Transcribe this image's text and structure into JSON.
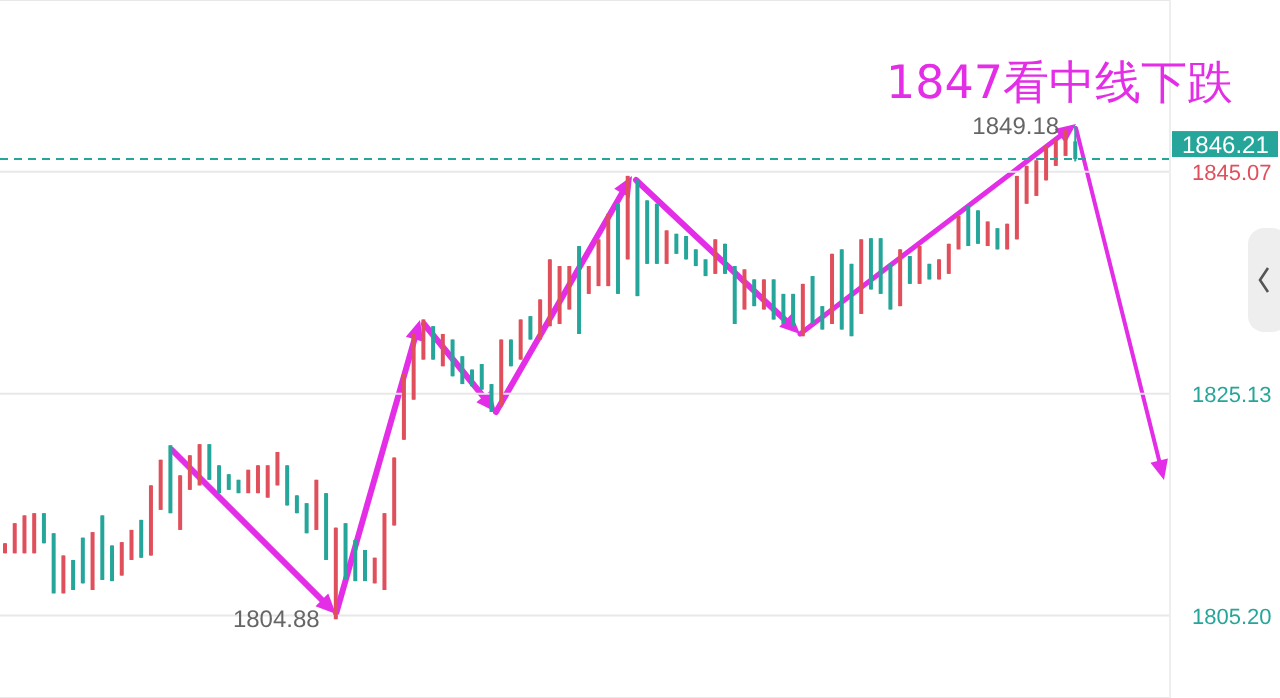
{
  "chart_data": {
    "type": "candlestick",
    "title": "1847看中线下跌",
    "categories": [
      null,
      null,
      null,
      null,
      null,
      null,
      null,
      null,
      null,
      null,
      null,
      null,
      null,
      null,
      null,
      null,
      null,
      null,
      null,
      null,
      null,
      null,
      null,
      null,
      null,
      null,
      null,
      null,
      null,
      null,
      null,
      null,
      null,
      null,
      null,
      null,
      null,
      null,
      null,
      null,
      null,
      null,
      null,
      null,
      null,
      null,
      null,
      null,
      null,
      null,
      null,
      null,
      null,
      null,
      null,
      null,
      null,
      null,
      null,
      null,
      null,
      null,
      null,
      null,
      null,
      null,
      null,
      null,
      null,
      null,
      null,
      null,
      null,
      null,
      null,
      null,
      null,
      null,
      null,
      null,
      null,
      null,
      null,
      null,
      null,
      null,
      null,
      null,
      null,
      null,
      null,
      null,
      null,
      null,
      null,
      null,
      null,
      null,
      null,
      null,
      null,
      null,
      null,
      null,
      null,
      null,
      null,
      null,
      null,
      null,
      null
    ],
    "ohlc": [
      [
        1810.8,
        1811.7,
        1810.8,
        1811.7
      ],
      [
        1810.8,
        1813.5,
        1810.8,
        1813.5
      ],
      [
        1810.8,
        1814.2,
        1810.8,
        1814.2
      ],
      [
        1810.8,
        1814.4,
        1810.8,
        1814.4
      ],
      [
        1814.4,
        1814.4,
        1811.7,
        1811.7
      ],
      [
        1812.6,
        1812.6,
        1807.2,
        1807.2
      ],
      [
        1807.2,
        1810.6,
        1807.2,
        1810.6
      ],
      [
        1810.2,
        1810.2,
        1807.5,
        1807.5
      ],
      [
        1812.2,
        1812.2,
        1808.1,
        1808.1
      ],
      [
        1807.5,
        1812.7,
        1807.5,
        1812.7
      ],
      [
        1814.2,
        1814.2,
        1808.4,
        1808.4
      ],
      [
        1811.5,
        1811.5,
        1808.3,
        1808.3
      ],
      [
        1808.8,
        1811.8,
        1808.8,
        1811.8
      ],
      [
        1810.2,
        1812.9,
        1810.2,
        1812.9
      ],
      [
        1813.8,
        1813.8,
        1810.4,
        1810.4
      ],
      [
        1810.6,
        1816.9,
        1810.6,
        1816.9
      ],
      [
        1814.7,
        1819.2,
        1814.7,
        1819.2
      ],
      [
        1820.5,
        1820.5,
        1814.4,
        1814.4
      ],
      [
        1812.9,
        1817.8,
        1812.9,
        1817.8
      ],
      [
        1816.5,
        1819.6,
        1816.5,
        1819.6
      ],
      [
        1816.9,
        1820.6,
        1816.9,
        1820.6
      ],
      [
        1820.6,
        1820.6,
        1817.4,
        1817.4
      ],
      [
        1818.7,
        1818.7,
        1816.2,
        1816.2
      ],
      [
        1817.9,
        1817.9,
        1816.5,
        1816.5
      ],
      [
        1817.4,
        1817.4,
        1816.2,
        1816.2
      ],
      [
        1816.2,
        1818.3,
        1816.2,
        1818.3
      ],
      [
        1816.2,
        1818.7,
        1816.2,
        1818.7
      ],
      [
        1815.8,
        1818.7,
        1815.8,
        1818.7
      ],
      [
        1816.9,
        1819.9,
        1816.9,
        1819.9
      ],
      [
        1818.7,
        1818.7,
        1815.1,
        1815.1
      ],
      [
        1816.0,
        1816.0,
        1814.4,
        1814.4
      ],
      [
        1815.3,
        1815.3,
        1812.6,
        1812.6
      ],
      [
        1812.9,
        1817.4,
        1812.9,
        1817.4
      ],
      [
        1816.2,
        1816.2,
        1810.2,
        1810.2
      ],
      [
        1804.88,
        1813.1,
        1804.88,
        1813.1
      ],
      [
        1813.5,
        1813.5,
        1808.4,
        1808.4
      ],
      [
        1812.0,
        1812.0,
        1808.3,
        1808.3
      ],
      [
        1811.1,
        1811.1,
        1808.3,
        1808.3
      ],
      [
        1808.1,
        1810.4,
        1808.1,
        1810.4
      ],
      [
        1807.5,
        1814.4,
        1807.5,
        1814.4
      ],
      [
        1813.3,
        1819.4,
        1813.3,
        1819.4
      ],
      [
        1821.0,
        1826.9,
        1821.0,
        1826.9
      ],
      [
        1824.6,
        1830.5,
        1824.6,
        1830.5
      ],
      [
        1828.2,
        1831.8,
        1828.2,
        1831.8
      ],
      [
        1831.2,
        1831.2,
        1828.2,
        1828.2
      ],
      [
        1827.6,
        1830.5,
        1827.6,
        1830.5
      ],
      [
        1830.0,
        1830.0,
        1826.7,
        1826.7
      ],
      [
        1828.5,
        1828.5,
        1826.0,
        1826.0
      ],
      [
        1827.3,
        1827.3,
        1825.8,
        1825.8
      ],
      [
        1827.8,
        1827.8,
        1825.5,
        1825.5
      ],
      [
        1826.0,
        1826.0,
        1823.5,
        1823.5
      ],
      [
        1824.0,
        1830.0,
        1824.0,
        1830.0
      ],
      [
        1830.0,
        1830.0,
        1827.6,
        1827.6
      ],
      [
        1828.2,
        1831.8,
        1828.2,
        1831.8
      ],
      [
        1832.1,
        1832.1,
        1830.0,
        1830.0
      ],
      [
        1830.0,
        1833.6,
        1830.0,
        1833.6
      ],
      [
        1831.2,
        1837.2,
        1831.2,
        1837.2
      ],
      [
        1831.4,
        1836.6,
        1831.4,
        1836.6
      ],
      [
        1832.7,
        1836.6,
        1832.7,
        1836.6
      ],
      [
        1838.4,
        1838.4,
        1830.5,
        1830.5
      ],
      [
        1834.1,
        1836.6,
        1834.1,
        1836.6
      ],
      [
        1834.8,
        1839.0,
        1834.8,
        1839.0
      ],
      [
        1834.8,
        1841.3,
        1834.8,
        1841.3
      ],
      [
        1842.2,
        1842.2,
        1834.1,
        1834.1
      ],
      [
        1837.2,
        1844.7,
        1837.2,
        1844.7
      ],
      [
        1844.3,
        1844.3,
        1833.9,
        1833.9
      ],
      [
        1842.5,
        1842.5,
        1836.8,
        1836.8
      ],
      [
        1842.2,
        1842.2,
        1836.8,
        1836.8
      ],
      [
        1836.8,
        1839.8,
        1836.8,
        1839.8
      ],
      [
        1839.5,
        1839.5,
        1837.7,
        1837.7
      ],
      [
        1839.3,
        1839.3,
        1837.2,
        1837.2
      ],
      [
        1838.1,
        1838.1,
        1836.6,
        1836.6
      ],
      [
        1837.2,
        1837.2,
        1835.7,
        1835.7
      ],
      [
        1835.9,
        1839.0,
        1835.9,
        1839.0
      ],
      [
        1838.6,
        1838.6,
        1835.9,
        1835.9
      ],
      [
        1836.6,
        1836.6,
        1831.4,
        1831.4
      ],
      [
        1832.7,
        1836.3,
        1832.7,
        1836.3
      ],
      [
        1835.4,
        1835.4,
        1833.0,
        1833.0
      ],
      [
        1832.7,
        1835.4,
        1832.7,
        1835.4
      ],
      [
        1835.4,
        1835.4,
        1831.8,
        1831.8
      ],
      [
        1834.1,
        1834.1,
        1831.4,
        1831.4
      ],
      [
        1834.1,
        1834.1,
        1831.2,
        1831.2
      ],
      [
        1830.3,
        1835.0,
        1830.3,
        1835.0
      ],
      [
        1835.7,
        1835.7,
        1831.4,
        1831.4
      ],
      [
        1833.0,
        1833.0,
        1830.9,
        1830.9
      ],
      [
        1831.4,
        1837.7,
        1831.4,
        1837.7
      ],
      [
        1838.1,
        1838.1,
        1830.9,
        1830.9
      ],
      [
        1836.8,
        1836.8,
        1830.3,
        1830.3
      ],
      [
        1832.3,
        1839.0,
        1832.3,
        1839.0
      ],
      [
        1839.1,
        1839.1,
        1834.5,
        1834.5
      ],
      [
        1839.1,
        1839.1,
        1834.1,
        1834.1
      ],
      [
        1836.8,
        1836.8,
        1832.7,
        1832.7
      ],
      [
        1833.0,
        1838.1,
        1833.0,
        1838.1
      ],
      [
        1837.5,
        1837.5,
        1835.0,
        1835.0
      ],
      [
        1835.0,
        1838.4,
        1835.0,
        1838.4
      ],
      [
        1836.8,
        1836.8,
        1835.4,
        1835.4
      ],
      [
        1835.4,
        1837.2,
        1835.4,
        1837.2
      ],
      [
        1835.9,
        1838.6,
        1835.9,
        1838.6
      ],
      [
        1838.1,
        1841.1,
        1838.1,
        1841.1
      ],
      [
        1842.0,
        1842.0,
        1838.4,
        1838.4
      ],
      [
        1841.6,
        1841.6,
        1838.6,
        1838.6
      ],
      [
        1838.4,
        1840.6,
        1838.4,
        1840.6
      ],
      [
        1840.0,
        1840.0,
        1838.1,
        1838.1
      ],
      [
        1838.1,
        1840.4,
        1838.1,
        1840.4
      ],
      [
        1839.0,
        1844.7,
        1839.0,
        1844.7
      ],
      [
        1842.2,
        1845.6,
        1842.2,
        1845.6
      ],
      [
        1842.9,
        1846.1,
        1842.9,
        1846.1
      ],
      [
        1844.3,
        1847.4,
        1844.3,
        1847.4
      ],
      [
        1845.6,
        1847.9,
        1845.6,
        1847.9
      ],
      [
        1846.5,
        1848.8,
        1846.5,
        1848.8
      ],
      [
        1847.8,
        1849.18,
        1846.0,
        1846.21
      ]
    ],
    "ylim": [
      1797.8,
      1860.5
    ],
    "yticks": [
      {
        "value": 1805.2,
        "label": "1805.20"
      },
      1825.13,
      1845.07
    ],
    "grid": "y",
    "tick_labels": "y",
    "ref_lines": [
      {
        "axis": "y",
        "value": 1846.21,
        "label": "1846.21",
        "color": "#26a69a",
        "line_style": "dashed"
      }
    ],
    "annotations": [
      "1849.18",
      "1804.88"
    ]
  }
}
